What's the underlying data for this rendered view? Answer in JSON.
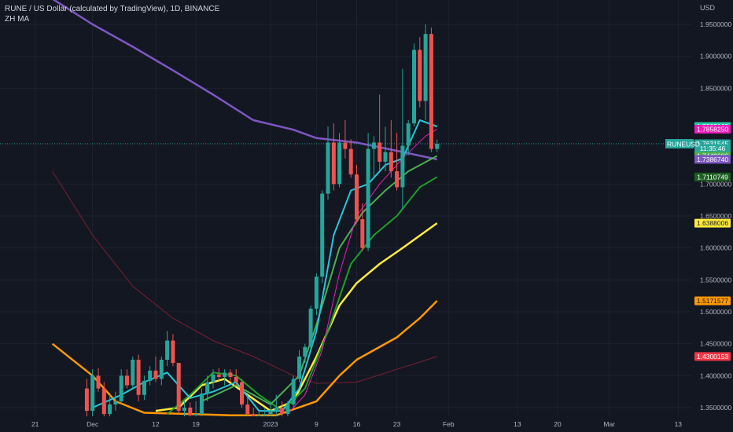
{
  "header": {
    "title": "RUNE / US Dollar (calculated by TradingView), 1D, BINANCE",
    "indicator": "ZH MA"
  },
  "price_axis": {
    "currency": "USD",
    "ticks": [
      "1.9500000",
      "1.9000000",
      "1.8500000",
      "1.7000000",
      "1.6500000",
      "1.6000000",
      "1.5500000",
      "1.5000000",
      "1.4500000",
      "1.4000000",
      "1.3500000"
    ]
  },
  "time_axis": {
    "ticks": [
      "21",
      "Dec",
      "12",
      "19",
      "2023",
      "9",
      "16",
      "23",
      "Feb",
      "13",
      "20",
      "Mar",
      "13"
    ]
  },
  "price_labels": [
    {
      "text": "1.7902165",
      "value": 1.7902165,
      "color": "#26c6a2",
      "text_color": "#ffffff"
    },
    {
      "text": "1.7858250",
      "value": 1.785825,
      "color": "#e91eb8",
      "text_color": "#ffffff"
    },
    {
      "text": "1.7631545",
      "value": 1.7631545,
      "color": "#26a69a",
      "text_color": "#ffffff"
    },
    {
      "text": "11:35:46",
      "value": 1.7556,
      "color": "#26a69a",
      "text_color": "#ffffff"
    },
    {
      "text": "1.7440606",
      "value": 1.7440606,
      "color": "#4caf50",
      "text_color": "#ffffff"
    },
    {
      "text": "1.7386740",
      "value": 1.738674,
      "color": "#7e57c2",
      "text_color": "#ffffff"
    },
    {
      "text": "1.7110749",
      "value": 1.7110749,
      "color": "#1b5e20",
      "text_color": "#ffffff"
    },
    {
      "text": "1.6388006",
      "value": 1.6388006,
      "color": "#ffeb3b",
      "text_color": "#131722"
    },
    {
      "text": "1.5171577",
      "value": 1.5171577,
      "color": "#ff9800",
      "text_color": "#131722"
    },
    {
      "text": "1.4300153",
      "value": 1.4300153,
      "color": "#f23645",
      "text_color": "#ffffff"
    }
  ],
  "symbol_label": {
    "text": "RUNEUSD",
    "color": "#26a69a"
  },
  "last_price": 1.7631545,
  "chart_data": {
    "type": "candlestick",
    "symbol": "RUNE / US Dollar",
    "interval": "1D",
    "exchange": "BINANCE",
    "up_color": "#26a69a",
    "down_color": "#ef5350",
    "ylim": [
      1.332,
      1.982
    ],
    "candles": [
      {
        "date": "2022-11-30",
        "o": 1.38,
        "h": 1.395,
        "l": 1.332,
        "c": 1.345
      },
      {
        "date": "2022-12-01",
        "o": 1.345,
        "h": 1.41,
        "l": 1.335,
        "c": 1.4
      },
      {
        "date": "2022-12-02",
        "o": 1.4,
        "h": 1.412,
        "l": 1.375,
        "c": 1.38
      },
      {
        "date": "2022-12-03",
        "o": 1.38,
        "h": 1.39,
        "l": 1.332,
        "c": 1.34
      },
      {
        "date": "2022-12-04",
        "o": 1.34,
        "h": 1.37,
        "l": 1.33,
        "c": 1.355
      },
      {
        "date": "2022-12-05",
        "o": 1.355,
        "h": 1.375,
        "l": 1.345,
        "c": 1.36
      },
      {
        "date": "2022-12-06",
        "o": 1.36,
        "h": 1.41,
        "l": 1.355,
        "c": 1.4
      },
      {
        "date": "2022-12-07",
        "o": 1.4,
        "h": 1.41,
        "l": 1.38,
        "c": 1.385
      },
      {
        "date": "2022-12-08",
        "o": 1.385,
        "h": 1.43,
        "l": 1.38,
        "c": 1.425
      },
      {
        "date": "2022-12-09",
        "o": 1.425,
        "h": 1.433,
        "l": 1.36,
        "c": 1.37
      },
      {
        "date": "2022-12-10",
        "o": 1.37,
        "h": 1.4,
        "l": 1.362,
        "c": 1.392
      },
      {
        "date": "2022-12-11",
        "o": 1.392,
        "h": 1.415,
        "l": 1.385,
        "c": 1.408
      },
      {
        "date": "2022-12-12",
        "o": 1.408,
        "h": 1.43,
        "l": 1.39,
        "c": 1.395
      },
      {
        "date": "2022-12-13",
        "o": 1.395,
        "h": 1.43,
        "l": 1.385,
        "c": 1.425
      },
      {
        "date": "2022-12-14",
        "o": 1.425,
        "h": 1.47,
        "l": 1.415,
        "c": 1.455
      },
      {
        "date": "2022-12-15",
        "o": 1.455,
        "h": 1.465,
        "l": 1.415,
        "c": 1.42
      },
      {
        "date": "2022-12-16",
        "o": 1.42,
        "h": 1.42,
        "l": 1.34,
        "c": 1.345
      },
      {
        "date": "2022-12-17",
        "o": 1.345,
        "h": 1.36,
        "l": 1.33,
        "c": 1.35
      },
      {
        "date": "2022-12-18",
        "o": 1.35,
        "h": 1.358,
        "l": 1.33,
        "c": 1.338
      },
      {
        "date": "2022-12-19",
        "o": 1.338,
        "h": 1.36,
        "l": 1.33,
        "c": 1.34
      },
      {
        "date": "2022-12-20",
        "o": 1.34,
        "h": 1.38,
        "l": 1.335,
        "c": 1.372
      },
      {
        "date": "2022-12-21",
        "o": 1.372,
        "h": 1.4,
        "l": 1.36,
        "c": 1.39
      },
      {
        "date": "2022-12-22",
        "o": 1.39,
        "h": 1.41,
        "l": 1.38,
        "c": 1.402
      },
      {
        "date": "2022-12-23",
        "o": 1.402,
        "h": 1.412,
        "l": 1.392,
        "c": 1.398
      },
      {
        "date": "2022-12-24",
        "o": 1.398,
        "h": 1.41,
        "l": 1.385,
        "c": 1.405
      },
      {
        "date": "2022-12-25",
        "o": 1.405,
        "h": 1.41,
        "l": 1.39,
        "c": 1.398
      },
      {
        "date": "2022-12-26",
        "o": 1.398,
        "h": 1.41,
        "l": 1.385,
        "c": 1.39
      },
      {
        "date": "2022-12-27",
        "o": 1.39,
        "h": 1.395,
        "l": 1.35,
        "c": 1.355
      },
      {
        "date": "2022-12-28",
        "o": 1.355,
        "h": 1.37,
        "l": 1.332,
        "c": 1.34
      },
      {
        "date": "2022-12-29",
        "o": 1.34,
        "h": 1.35,
        "l": 1.33,
        "c": 1.335
      },
      {
        "date": "2022-12-30",
        "o": 1.335,
        "h": 1.345,
        "l": 1.33,
        "c": 1.338
      },
      {
        "date": "2022-12-31",
        "o": 1.338,
        "h": 1.35,
        "l": 1.332,
        "c": 1.34
      },
      {
        "date": "2023-01-01",
        "o": 1.34,
        "h": 1.36,
        "l": 1.335,
        "c": 1.345
      },
      {
        "date": "2023-01-02",
        "o": 1.345,
        "h": 1.37,
        "l": 1.335,
        "c": 1.35
      },
      {
        "date": "2023-01-03",
        "o": 1.35,
        "h": 1.36,
        "l": 1.332,
        "c": 1.34
      },
      {
        "date": "2023-01-04",
        "o": 1.34,
        "h": 1.36,
        "l": 1.335,
        "c": 1.355
      },
      {
        "date": "2023-01-05",
        "o": 1.355,
        "h": 1.4,
        "l": 1.35,
        "c": 1.395
      },
      {
        "date": "2023-01-06",
        "o": 1.395,
        "h": 1.44,
        "l": 1.39,
        "c": 1.43
      },
      {
        "date": "2023-01-07",
        "o": 1.43,
        "h": 1.45,
        "l": 1.42,
        "c": 1.445
      },
      {
        "date": "2023-01-08",
        "o": 1.445,
        "h": 1.51,
        "l": 1.44,
        "c": 1.505
      },
      {
        "date": "2023-01-09",
        "o": 1.505,
        "h": 1.56,
        "l": 1.495,
        "c": 1.555
      },
      {
        "date": "2023-01-10",
        "o": 1.555,
        "h": 1.69,
        "l": 1.545,
        "c": 1.685
      },
      {
        "date": "2023-01-11",
        "o": 1.685,
        "h": 1.79,
        "l": 1.675,
        "c": 1.765
      },
      {
        "date": "2023-01-12",
        "o": 1.765,
        "h": 1.795,
        "l": 1.69,
        "c": 1.7
      },
      {
        "date": "2023-01-13",
        "o": 1.7,
        "h": 1.78,
        "l": 1.695,
        "c": 1.765
      },
      {
        "date": "2023-01-14",
        "o": 1.765,
        "h": 1.8,
        "l": 1.74,
        "c": 1.755
      },
      {
        "date": "2023-01-15",
        "o": 1.755,
        "h": 1.77,
        "l": 1.71,
        "c": 1.715
      },
      {
        "date": "2023-01-16",
        "o": 1.715,
        "h": 1.73,
        "l": 1.64,
        "c": 1.645
      },
      {
        "date": "2023-01-17",
        "o": 1.645,
        "h": 1.67,
        "l": 1.595,
        "c": 1.6
      },
      {
        "date": "2023-01-18",
        "o": 1.6,
        "h": 1.78,
        "l": 1.595,
        "c": 1.755
      },
      {
        "date": "2023-01-19",
        "o": 1.755,
        "h": 1.775,
        "l": 1.71,
        "c": 1.765
      },
      {
        "date": "2023-01-20",
        "o": 1.765,
        "h": 1.84,
        "l": 1.72,
        "c": 1.735
      },
      {
        "date": "2023-01-21",
        "o": 1.735,
        "h": 1.79,
        "l": 1.72,
        "c": 1.75
      },
      {
        "date": "2023-01-22",
        "o": 1.75,
        "h": 1.8,
        "l": 1.71,
        "c": 1.72
      },
      {
        "date": "2023-01-23",
        "o": 1.72,
        "h": 1.78,
        "l": 1.69,
        "c": 1.695
      },
      {
        "date": "2023-01-24",
        "o": 1.695,
        "h": 1.88,
        "l": 1.66,
        "c": 1.76
      },
      {
        "date": "2023-01-25",
        "o": 1.76,
        "h": 1.8,
        "l": 1.745,
        "c": 1.795
      },
      {
        "date": "2023-01-26",
        "o": 1.795,
        "h": 1.92,
        "l": 1.79,
        "c": 1.91
      },
      {
        "date": "2023-01-27",
        "o": 1.91,
        "h": 1.93,
        "l": 1.82,
        "c": 1.83
      },
      {
        "date": "2023-01-28",
        "o": 1.83,
        "h": 1.95,
        "l": 1.8,
        "c": 1.935
      },
      {
        "date": "2023-01-29",
        "o": 1.935,
        "h": 1.945,
        "l": 1.75,
        "c": 1.755
      },
      {
        "date": "2023-01-30",
        "o": 1.755,
        "h": 1.77,
        "l": 1.75,
        "c": 1.7631545
      }
    ],
    "moving_averages": [
      {
        "color": "#7e57c2",
        "width": 2.5,
        "points": [
          [
            "2022-11-24",
            1.99
          ],
          [
            "2022-12-01",
            1.95
          ],
          [
            "2022-12-08",
            1.915
          ],
          [
            "2022-12-15",
            1.878
          ],
          [
            "2022-12-22",
            1.84
          ],
          [
            "2022-12-29",
            1.8
          ],
          [
            "2023-01-05",
            1.785
          ],
          [
            "2023-01-09",
            1.772
          ],
          [
            "2023-01-16",
            1.765
          ],
          [
            "2023-01-23",
            1.752
          ],
          [
            "2023-01-30",
            1.738674
          ]
        ]
      },
      {
        "color": "#7a1f33",
        "width": 1,
        "points": [
          [
            "2022-11-24",
            1.72
          ],
          [
            "2022-12-01",
            1.62
          ],
          [
            "2022-12-08",
            1.54
          ],
          [
            "2022-12-15",
            1.49
          ],
          [
            "2022-12-22",
            1.455
          ],
          [
            "2022-12-29",
            1.43
          ],
          [
            "2023-01-05",
            1.4
          ],
          [
            "2023-01-09",
            1.388
          ],
          [
            "2023-01-16",
            1.39
          ],
          [
            "2023-01-23",
            1.41
          ],
          [
            "2023-01-30",
            1.4300153
          ]
        ]
      },
      {
        "color": "#ff9800",
        "width": 2.5,
        "points": [
          [
            "2022-11-24",
            1.45
          ],
          [
            "2022-12-01",
            1.4
          ],
          [
            "2022-12-05",
            1.36
          ],
          [
            "2022-12-10",
            1.342
          ],
          [
            "2022-12-18",
            1.34
          ],
          [
            "2022-12-25",
            1.338
          ],
          [
            "2023-01-02",
            1.338
          ],
          [
            "2023-01-09",
            1.36
          ],
          [
            "2023-01-13",
            1.4
          ],
          [
            "2023-01-16",
            1.425
          ],
          [
            "2023-01-23",
            1.46
          ],
          [
            "2023-01-27",
            1.49
          ],
          [
            "2023-01-30",
            1.5171577
          ]
        ]
      },
      {
        "color": "#ffeb3b",
        "width": 2.5,
        "points": [
          [
            "2022-12-12",
            1.345
          ],
          [
            "2022-12-16",
            1.35
          ],
          [
            "2022-12-20",
            1.385
          ],
          [
            "2022-12-24",
            1.395
          ],
          [
            "2022-12-28",
            1.37
          ],
          [
            "2023-01-01",
            1.345
          ],
          [
            "2023-01-05",
            1.36
          ],
          [
            "2023-01-09",
            1.43
          ],
          [
            "2023-01-13",
            1.51
          ],
          [
            "2023-01-16",
            1.545
          ],
          [
            "2023-01-20",
            1.575
          ],
          [
            "2023-01-24",
            1.6
          ],
          [
            "2023-01-30",
            1.6388006
          ]
        ]
      },
      {
        "color": "#1b9e28",
        "width": 2,
        "points": [
          [
            "2022-12-14",
            1.34
          ],
          [
            "2022-12-18",
            1.37
          ],
          [
            "2022-12-22",
            1.405
          ],
          [
            "2022-12-26",
            1.4
          ],
          [
            "2022-12-30",
            1.37
          ],
          [
            "2023-01-03",
            1.345
          ],
          [
            "2023-01-07",
            1.38
          ],
          [
            "2023-01-11",
            1.47
          ],
          [
            "2023-01-15",
            1.575
          ],
          [
            "2023-01-19",
            1.62
          ],
          [
            "2023-01-23",
            1.65
          ],
          [
            "2023-01-27",
            1.695
          ],
          [
            "2023-01-30",
            1.7110749
          ]
        ]
      },
      {
        "color": "#4caf50",
        "width": 2,
        "points": [
          [
            "2022-12-20",
            1.36
          ],
          [
            "2022-12-26",
            1.385
          ],
          [
            "2023-01-01",
            1.355
          ],
          [
            "2023-01-06",
            1.4
          ],
          [
            "2023-01-09",
            1.48
          ],
          [
            "2023-01-13",
            1.6
          ],
          [
            "2023-01-17",
            1.655
          ],
          [
            "2023-01-21",
            1.69
          ],
          [
            "2023-01-25",
            1.72
          ],
          [
            "2023-01-30",
            1.7440606
          ]
        ]
      },
      {
        "color": "#e91eb8",
        "width": 1,
        "points": [
          [
            "2023-01-04",
            1.34
          ],
          [
            "2023-01-07",
            1.37
          ],
          [
            "2023-01-10",
            1.44
          ],
          [
            "2023-01-13",
            1.56
          ],
          [
            "2023-01-16",
            1.65
          ],
          [
            "2023-01-20",
            1.7
          ],
          [
            "2023-01-24",
            1.74
          ],
          [
            "2023-01-28",
            1.775
          ],
          [
            "2023-01-30",
            1.785825
          ]
        ]
      },
      {
        "color": "#26c6da",
        "width": 2,
        "points": [
          [
            "2022-12-01",
            1.35
          ],
          [
            "2022-12-06",
            1.37
          ],
          [
            "2022-12-10",
            1.39
          ],
          [
            "2022-12-14",
            1.405
          ],
          [
            "2022-12-18",
            1.365
          ],
          [
            "2022-12-22",
            1.375
          ],
          [
            "2022-12-26",
            1.39
          ],
          [
            "2022-12-30",
            1.345
          ],
          [
            "2023-01-03",
            1.345
          ],
          [
            "2023-01-06",
            1.38
          ],
          [
            "2023-01-09",
            1.47
          ],
          [
            "2023-01-12",
            1.62
          ],
          [
            "2023-01-15",
            1.69
          ],
          [
            "2023-01-18",
            1.7
          ],
          [
            "2023-01-21",
            1.73
          ],
          [
            "2023-01-24",
            1.74
          ],
          [
            "2023-01-27",
            1.8
          ],
          [
            "2023-01-30",
            1.7902165
          ]
        ]
      }
    ]
  }
}
